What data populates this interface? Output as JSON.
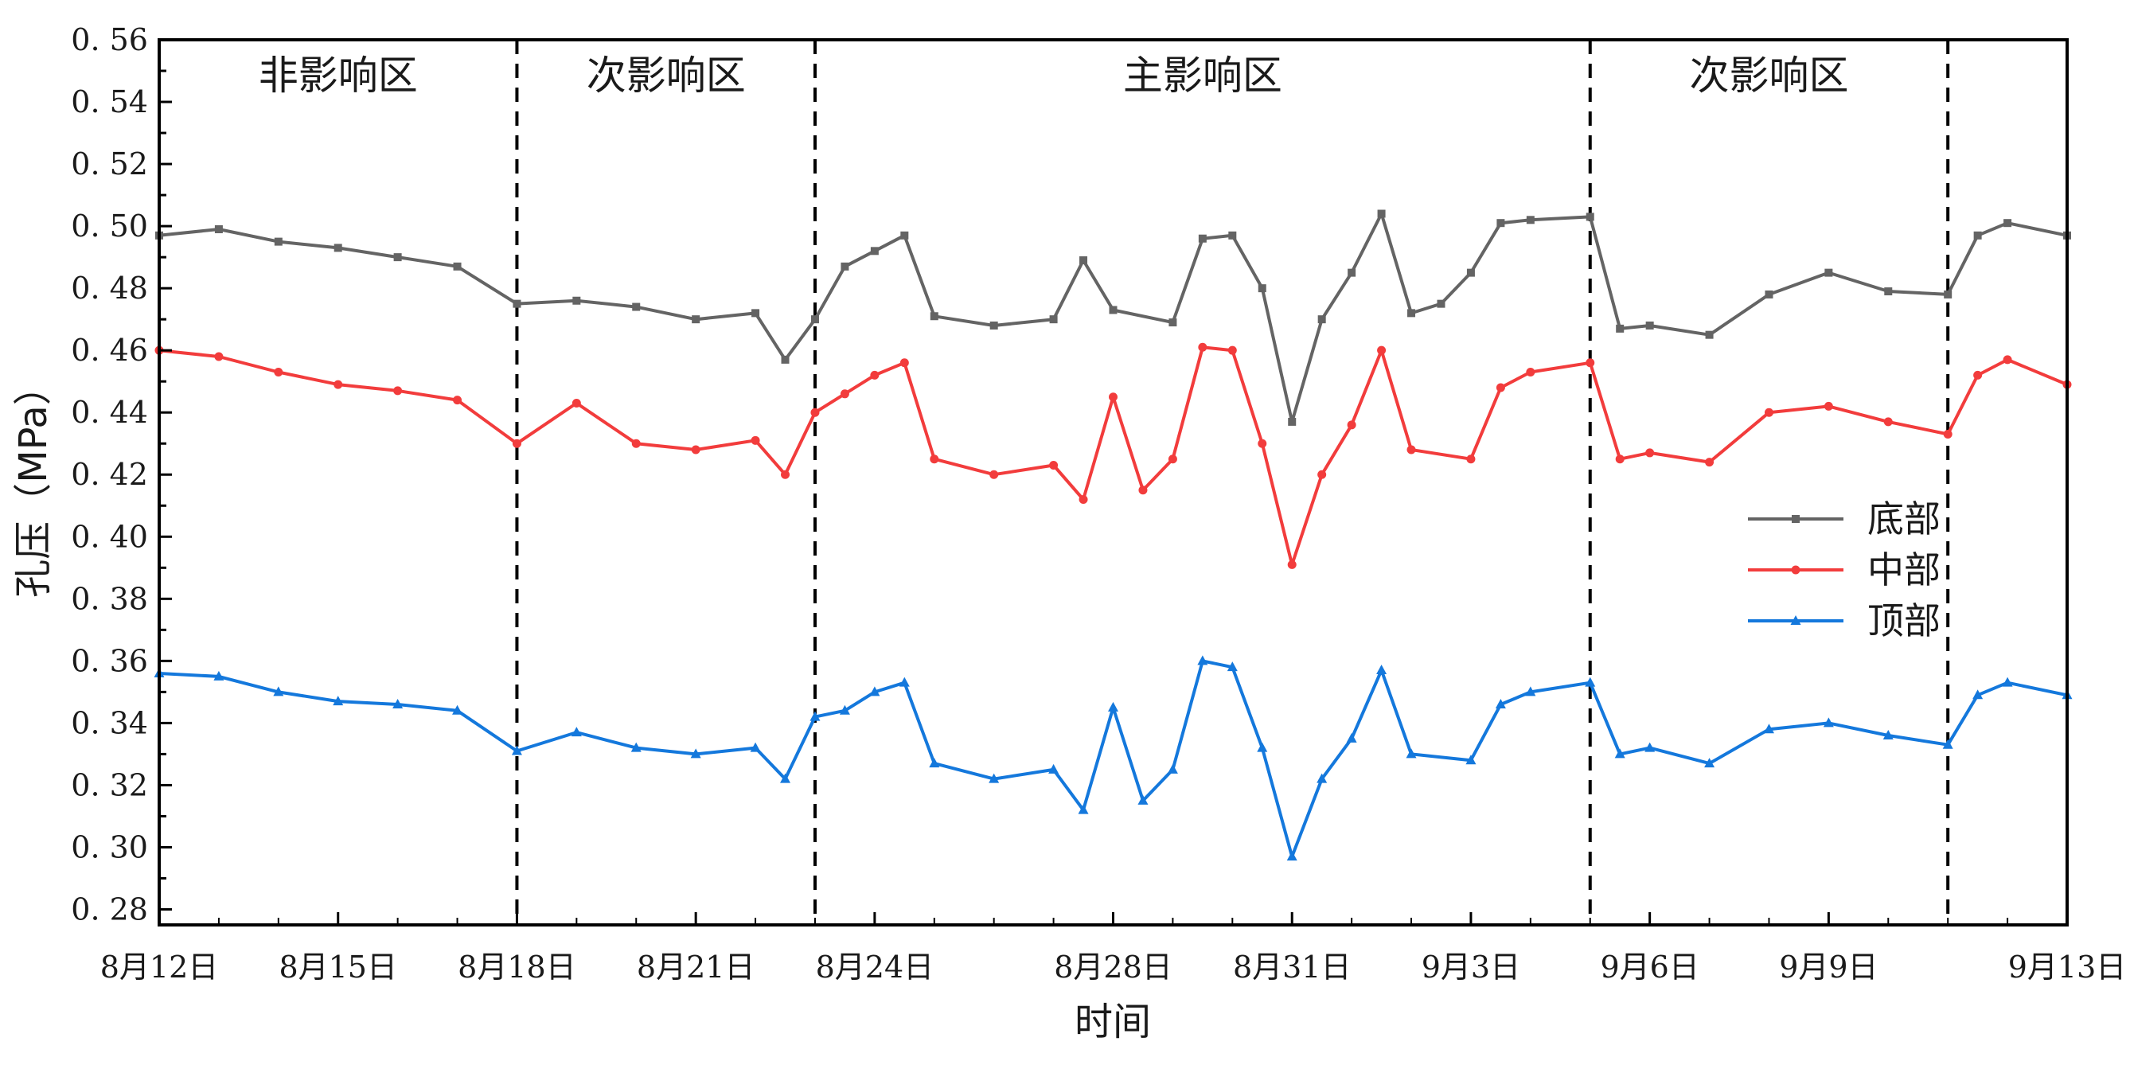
{
  "chart_data": {
    "type": "line",
    "title": "",
    "xlabel": "时间",
    "ylabel": "孔压（MPa）",
    "ylim": [
      0.275,
      0.56
    ],
    "xlim": [
      "2023-08-12",
      "2023-09-13"
    ],
    "yticks": [
      "0.28",
      "0.30",
      "0.32",
      "0.34",
      "0.36",
      "0.38",
      "0.40",
      "0.42",
      "0.44",
      "0.46",
      "0.48",
      "0.50",
      "0.52",
      "0.54",
      "0.56"
    ],
    "xticks": [
      {
        "date": "2023-08-12",
        "label": "8月12日"
      },
      {
        "date": "2023-08-15",
        "label": "8月15日"
      },
      {
        "date": "2023-08-18",
        "label": "8月18日"
      },
      {
        "date": "2023-08-21",
        "label": "8月21日"
      },
      {
        "date": "2023-08-24",
        "label": "8月24日"
      },
      {
        "date": "2023-08-28",
        "label": "8月28日"
      },
      {
        "date": "2023-08-31",
        "label": "8月31日"
      },
      {
        "date": "2023-09-03",
        "label": "9月3日"
      },
      {
        "date": "2023-09-06",
        "label": "9月6日"
      },
      {
        "date": "2023-09-09",
        "label": "9月9日"
      },
      {
        "date": "2023-09-13",
        "label": "9月13日"
      }
    ],
    "zones": [
      {
        "label": "非影响区",
        "start": "2023-08-12",
        "end": "2023-08-18"
      },
      {
        "label": "次影响区",
        "start": "2023-08-18",
        "end": "2023-08-23"
      },
      {
        "label": "主影响区",
        "start": "2023-08-23",
        "end": "2023-09-05"
      },
      {
        "label": "次影响区",
        "start": "2023-09-05",
        "end": "2023-09-11"
      }
    ],
    "zone_boundaries": [
      "2023-08-18",
      "2023-08-23",
      "2023-09-05",
      "2023-09-11"
    ],
    "legend_position": "right",
    "grid": false,
    "series": [
      {
        "name": "底部",
        "color": "#646464",
        "marker": "square",
        "points": [
          [
            "2023-08-12",
            0.497
          ],
          [
            "2023-08-13",
            0.499
          ],
          [
            "2023-08-14",
            0.495
          ],
          [
            "2023-08-15",
            0.493
          ],
          [
            "2023-08-16",
            0.49
          ],
          [
            "2023-08-17",
            0.487
          ],
          [
            "2023-08-18",
            0.475
          ],
          [
            "2023-08-19",
            0.476
          ],
          [
            "2023-08-20",
            0.474
          ],
          [
            "2023-08-21",
            0.47
          ],
          [
            "2023-08-22",
            0.472
          ],
          [
            "2023-08-22 12:00",
            0.457
          ],
          [
            "2023-08-23",
            0.47
          ],
          [
            "2023-08-23 12:00",
            0.487
          ],
          [
            "2023-08-24",
            0.492
          ],
          [
            "2023-08-24 12:00",
            0.497
          ],
          [
            "2023-08-25",
            0.471
          ],
          [
            "2023-08-26",
            0.468
          ],
          [
            "2023-08-27",
            0.47
          ],
          [
            "2023-08-27 12:00",
            0.489
          ],
          [
            "2023-08-28",
            0.473
          ],
          [
            "2023-08-29",
            0.469
          ],
          [
            "2023-08-29 12:00",
            0.496
          ],
          [
            "2023-08-30",
            0.497
          ],
          [
            "2023-08-30 12:00",
            0.48
          ],
          [
            "2023-08-31",
            0.437
          ],
          [
            "2023-08-31 12:00",
            0.47
          ],
          [
            "2023-09-01",
            0.485
          ],
          [
            "2023-09-01 12:00",
            0.504
          ],
          [
            "2023-09-02",
            0.472
          ],
          [
            "2023-09-02 12:00",
            0.475
          ],
          [
            "2023-09-03",
            0.485
          ],
          [
            "2023-09-03 12:00",
            0.501
          ],
          [
            "2023-09-04",
            0.502
          ],
          [
            "2023-09-05",
            0.503
          ],
          [
            "2023-09-05 12:00",
            0.467
          ],
          [
            "2023-09-06",
            0.468
          ],
          [
            "2023-09-07",
            0.465
          ],
          [
            "2023-09-08",
            0.478
          ],
          [
            "2023-09-09",
            0.485
          ],
          [
            "2023-09-10",
            0.479
          ],
          [
            "2023-09-11",
            0.478
          ],
          [
            "2023-09-11 12:00",
            0.497
          ],
          [
            "2023-09-12",
            0.501
          ],
          [
            "2023-09-13",
            0.497
          ]
        ]
      },
      {
        "name": "中部",
        "color": "#f23c3c",
        "marker": "circle",
        "points": [
          [
            "2023-08-12",
            0.46
          ],
          [
            "2023-08-13",
            0.458
          ],
          [
            "2023-08-14",
            0.453
          ],
          [
            "2023-08-15",
            0.449
          ],
          [
            "2023-08-16",
            0.447
          ],
          [
            "2023-08-17",
            0.444
          ],
          [
            "2023-08-18",
            0.43
          ],
          [
            "2023-08-19",
            0.443
          ],
          [
            "2023-08-20",
            0.43
          ],
          [
            "2023-08-21",
            0.428
          ],
          [
            "2023-08-22",
            0.431
          ],
          [
            "2023-08-22 12:00",
            0.42
          ],
          [
            "2023-08-23",
            0.44
          ],
          [
            "2023-08-23 12:00",
            0.446
          ],
          [
            "2023-08-24",
            0.452
          ],
          [
            "2023-08-24 12:00",
            0.456
          ],
          [
            "2023-08-25",
            0.425
          ],
          [
            "2023-08-26",
            0.42
          ],
          [
            "2023-08-27",
            0.423
          ],
          [
            "2023-08-27 12:00",
            0.412
          ],
          [
            "2023-08-28",
            0.445
          ],
          [
            "2023-08-28 12:00",
            0.415
          ],
          [
            "2023-08-29",
            0.425
          ],
          [
            "2023-08-29 12:00",
            0.461
          ],
          [
            "2023-08-30",
            0.46
          ],
          [
            "2023-08-30 12:00",
            0.43
          ],
          [
            "2023-08-31",
            0.391
          ],
          [
            "2023-08-31 12:00",
            0.42
          ],
          [
            "2023-09-01",
            0.436
          ],
          [
            "2023-09-01 12:00",
            0.46
          ],
          [
            "2023-09-02",
            0.428
          ],
          [
            "2023-09-03",
            0.425
          ],
          [
            "2023-09-03 12:00",
            0.448
          ],
          [
            "2023-09-04",
            0.453
          ],
          [
            "2023-09-05",
            0.456
          ],
          [
            "2023-09-05 12:00",
            0.425
          ],
          [
            "2023-09-06",
            0.427
          ],
          [
            "2023-09-07",
            0.424
          ],
          [
            "2023-09-08",
            0.44
          ],
          [
            "2023-09-09",
            0.442
          ],
          [
            "2023-09-10",
            0.437
          ],
          [
            "2023-09-11",
            0.433
          ],
          [
            "2023-09-11 12:00",
            0.452
          ],
          [
            "2023-09-12",
            0.457
          ],
          [
            "2023-09-13",
            0.449
          ]
        ]
      },
      {
        "name": "顶部",
        "color": "#1478dc",
        "marker": "triangle",
        "points": [
          [
            "2023-08-12",
            0.356
          ],
          [
            "2023-08-13",
            0.355
          ],
          [
            "2023-08-14",
            0.35
          ],
          [
            "2023-08-15",
            0.347
          ],
          [
            "2023-08-16",
            0.346
          ],
          [
            "2023-08-17",
            0.344
          ],
          [
            "2023-08-18",
            0.331
          ],
          [
            "2023-08-19",
            0.337
          ],
          [
            "2023-08-20",
            0.332
          ],
          [
            "2023-08-21",
            0.33
          ],
          [
            "2023-08-22",
            0.332
          ],
          [
            "2023-08-22 12:00",
            0.322
          ],
          [
            "2023-08-23",
            0.342
          ],
          [
            "2023-08-23 12:00",
            0.344
          ],
          [
            "2023-08-24",
            0.35
          ],
          [
            "2023-08-24 12:00",
            0.353
          ],
          [
            "2023-08-25",
            0.327
          ],
          [
            "2023-08-26",
            0.322
          ],
          [
            "2023-08-27",
            0.325
          ],
          [
            "2023-08-27 12:00",
            0.312
          ],
          [
            "2023-08-28",
            0.345
          ],
          [
            "2023-08-28 12:00",
            0.315
          ],
          [
            "2023-08-29",
            0.325
          ],
          [
            "2023-08-29 12:00",
            0.36
          ],
          [
            "2023-08-30",
            0.358
          ],
          [
            "2023-08-30 12:00",
            0.332
          ],
          [
            "2023-08-31",
            0.297
          ],
          [
            "2023-08-31 12:00",
            0.322
          ],
          [
            "2023-09-01",
            0.335
          ],
          [
            "2023-09-01 12:00",
            0.357
          ],
          [
            "2023-09-02",
            0.33
          ],
          [
            "2023-09-03",
            0.328
          ],
          [
            "2023-09-03 12:00",
            0.346
          ],
          [
            "2023-09-04",
            0.35
          ],
          [
            "2023-09-05",
            0.353
          ],
          [
            "2023-09-05 12:00",
            0.33
          ],
          [
            "2023-09-06",
            0.332
          ],
          [
            "2023-09-07",
            0.327
          ],
          [
            "2023-09-08",
            0.338
          ],
          [
            "2023-09-09",
            0.34
          ],
          [
            "2023-09-10",
            0.336
          ],
          [
            "2023-09-11",
            0.333
          ],
          [
            "2023-09-11 12:00",
            0.349
          ],
          [
            "2023-09-12",
            0.353
          ],
          [
            "2023-09-13",
            0.349
          ]
        ]
      }
    ]
  }
}
